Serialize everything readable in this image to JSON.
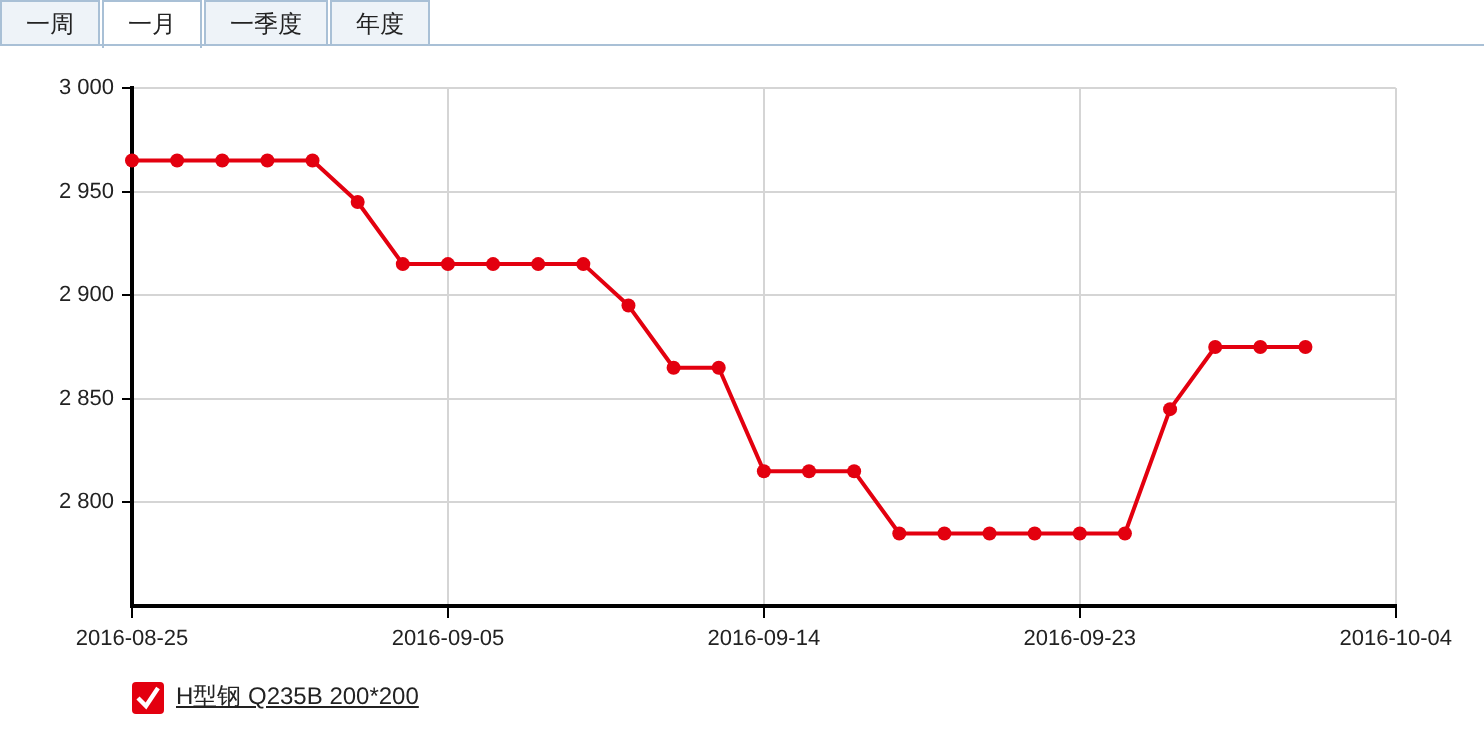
{
  "chart_data": {
    "type": "line",
    "annotations": [
      "一周",
      "一月",
      "一季度",
      "年度"
    ],
    "categories": [
      "2016-08-25",
      null,
      null,
      null,
      null,
      null,
      null,
      "2016-09-05",
      null,
      null,
      null,
      null,
      null,
      null,
      "2016-09-14",
      null,
      null,
      null,
      null,
      null,
      null,
      "2016-09-23",
      null,
      null,
      null,
      null,
      null,
      null,
      "2016-10-04"
    ],
    "series": [
      {
        "name": "H型钢 Q235B 200*200",
        "color": "#e3000f",
        "values": [
          2965,
          2965,
          2965,
          2965,
          2965,
          2945,
          2915,
          2915,
          2915,
          2915,
          2915,
          2895,
          2865,
          2865,
          2815,
          2815,
          2815,
          2785,
          2785,
          2785,
          2785,
          2785,
          2785,
          2845,
          2875,
          2875,
          2875,
          null,
          null
        ]
      }
    ],
    "ylim": [
      2750,
      3000
    ],
    "yticks": [
      {
        "value": 2800,
        "label": "2 800"
      },
      {
        "value": 2850,
        "label": "2 850"
      },
      {
        "value": 2900,
        "label": "2 900"
      },
      {
        "value": 2950,
        "label": "2 950"
      },
      {
        "value": 3000,
        "label": "3 000"
      }
    ],
    "grid": true,
    "legend": "bottom left",
    "marker": "circle",
    "line_style": "solid"
  }
}
